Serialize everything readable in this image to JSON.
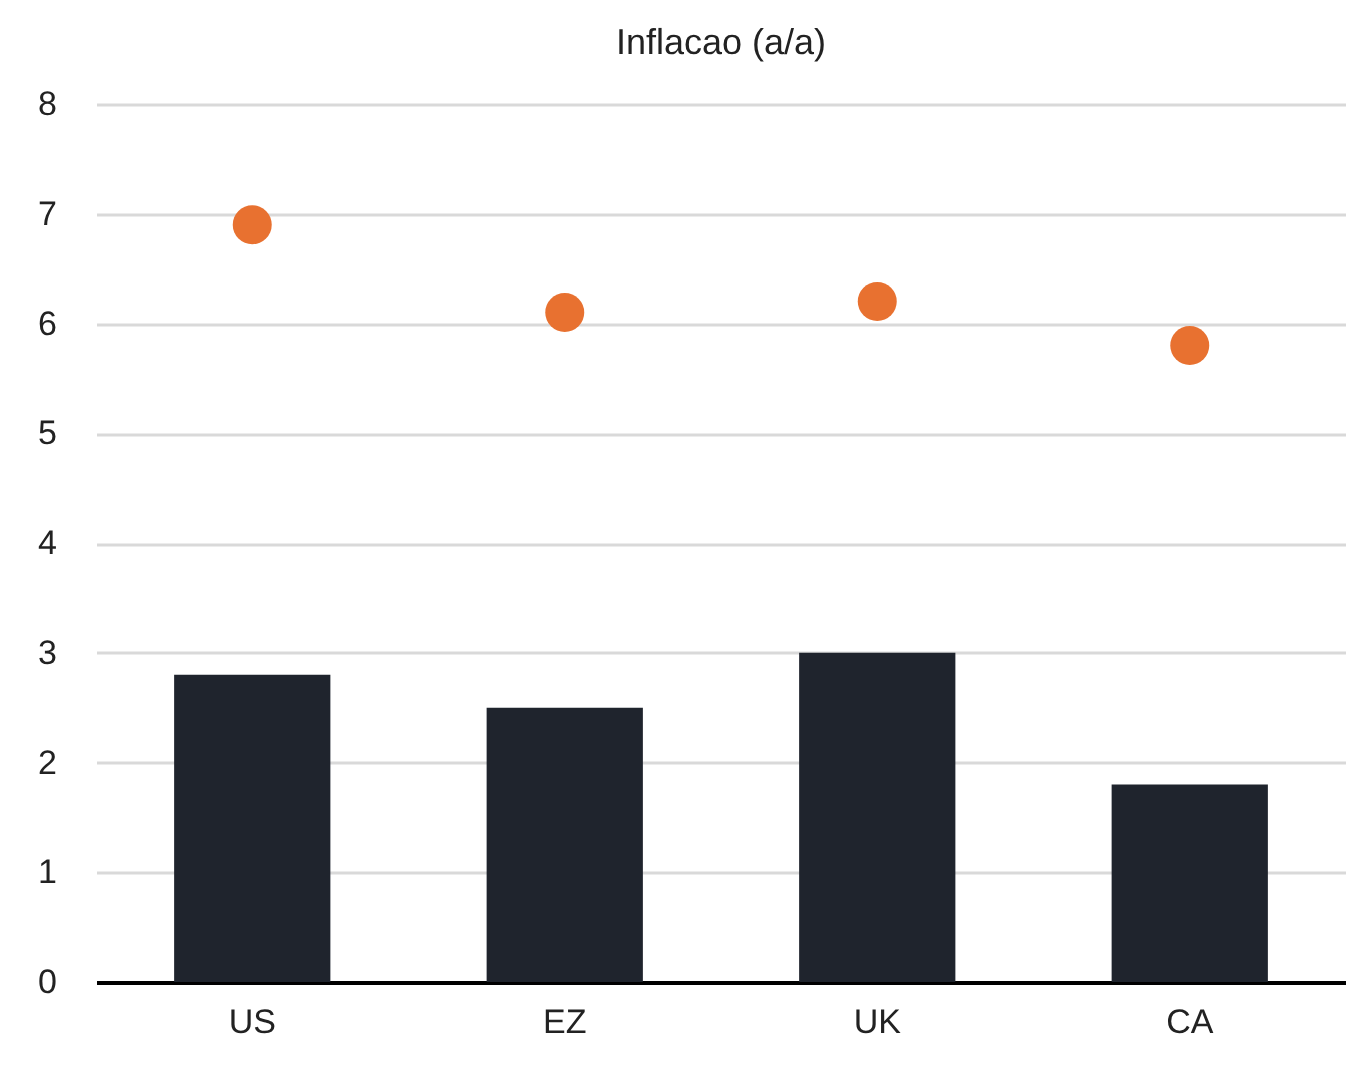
{
  "chart_data": {
    "type": "bar",
    "title": "Inflacao (a/a)",
    "categories": [
      "US",
      "EZ",
      "UK",
      "CA"
    ],
    "series": [
      {
        "color": "#1f242d",
        "values": [
          2.8,
          2.5,
          3.0,
          1.8
        ]
      },
      {
        "type": "scatter",
        "color": "#e87130",
        "values": [
          6.9,
          6.1,
          6.2,
          5.8
        ]
      }
    ],
    "ylim": [
      0,
      8
    ],
    "yticks": [
      0,
      1,
      2,
      3,
      4,
      5,
      6,
      7,
      8
    ],
    "grid": "y",
    "marker": "circle"
  }
}
